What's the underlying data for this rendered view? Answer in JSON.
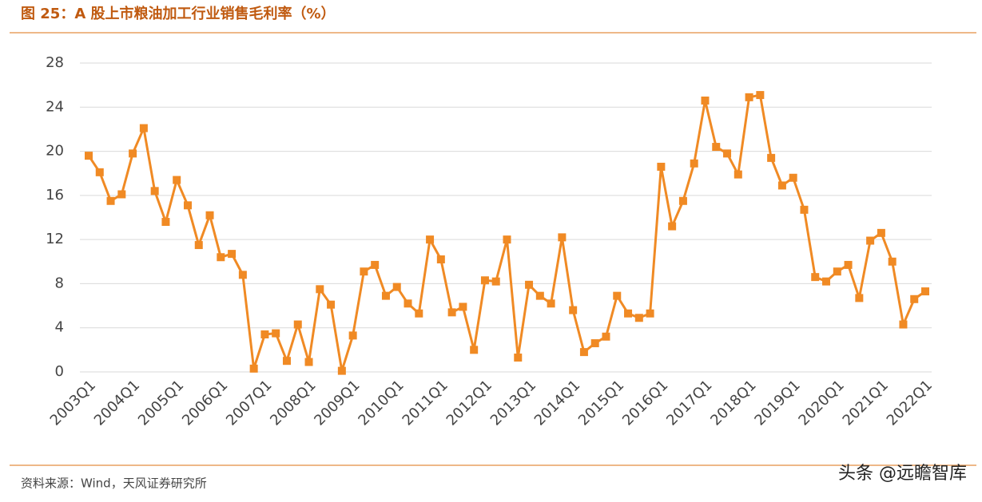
{
  "chart_data": {
    "type": "line",
    "title": "图 25：A 股上市粮油加工行业销售毛利率（%）",
    "source": "资料来源：Wind，天风证券研究所",
    "watermark": "头条 @远瞻智库",
    "categories": [
      "2003Q1",
      null,
      null,
      null,
      "2004Q1",
      null,
      null,
      null,
      "2005Q1",
      null,
      null,
      null,
      "2006Q1",
      null,
      null,
      null,
      "2007Q1",
      null,
      null,
      null,
      "2008Q1",
      null,
      null,
      null,
      "2009Q1",
      null,
      null,
      null,
      "2010Q1",
      null,
      null,
      null,
      "2011Q1",
      null,
      null,
      null,
      "2012Q1",
      null,
      null,
      null,
      "2013Q1",
      null,
      null,
      null,
      "2014Q1",
      null,
      null,
      null,
      "2015Q1",
      null,
      null,
      null,
      "2016Q1",
      null,
      null,
      null,
      "2017Q1",
      null,
      null,
      null,
      "2018Q1",
      null,
      null,
      null,
      "2019Q1",
      null,
      null,
      null,
      "2020Q1",
      null,
      null,
      null,
      "2021Q1",
      null,
      null,
      null,
      "2022Q1"
    ],
    "values": [
      19.6,
      18.1,
      15.5,
      16.1,
      19.8,
      22.1,
      16.4,
      13.6,
      17.4,
      15.1,
      11.5,
      14.2,
      10.4,
      10.7,
      8.8,
      0.3,
      3.4,
      3.5,
      1.0,
      4.3,
      0.9,
      7.5,
      6.1,
      0.1,
      3.3,
      9.1,
      9.7,
      6.9,
      7.7,
      6.2,
      5.3,
      12.0,
      10.2,
      5.4,
      5.9,
      2.0,
      8.3,
      8.2,
      12.0,
      1.3,
      7.9,
      6.9,
      6.2,
      12.2,
      5.6,
      1.8,
      2.6,
      3.2,
      6.9,
      5.3,
      4.9,
      5.3,
      18.6,
      13.2,
      15.5,
      18.9,
      24.6,
      20.4,
      19.8,
      17.9,
      24.9,
      25.1,
      19.4,
      16.9,
      17.6,
      14.7,
      8.6,
      8.2,
      9.1,
      9.7,
      6.7,
      11.9,
      12.6,
      10.0,
      4.3,
      6.6,
      7.3
    ],
    "color": "#f08a24",
    "ylim": [
      0,
      28
    ],
    "yticks": [
      0,
      4,
      8,
      12,
      16,
      20,
      24,
      28
    ],
    "grid": true
  }
}
